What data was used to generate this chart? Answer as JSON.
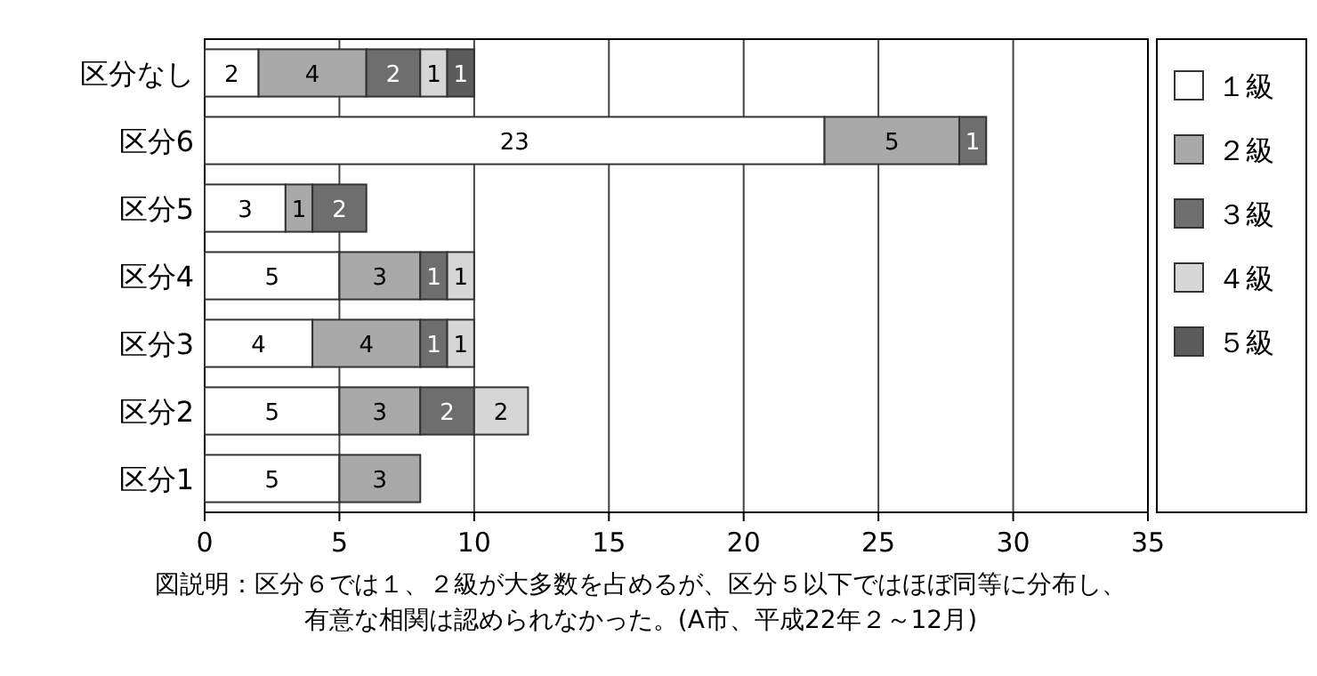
{
  "chart_data": {
    "type": "bar",
    "orientation": "horizontal",
    "stacked": true,
    "data_labels": true,
    "grid": "x",
    "legend": "right",
    "categories": [
      "区分なし",
      "区分6",
      "区分5",
      "区分4",
      "区分3",
      "区分2",
      "区分1"
    ],
    "series": [
      {
        "name": "１級",
        "color": "#ffffff",
        "values": [
          2,
          23,
          3,
          5,
          4,
          5,
          5
        ]
      },
      {
        "name": "２級",
        "color": "#a9a9a9",
        "values": [
          4,
          5,
          1,
          3,
          4,
          3,
          3
        ]
      },
      {
        "name": "３級",
        "color": "#6e6e6e",
        "values": [
          2,
          1,
          2,
          1,
          1,
          2,
          null
        ]
      },
      {
        "name": "４級",
        "color": "#d6d6d6",
        "values": [
          1,
          null,
          null,
          1,
          1,
          2,
          null
        ]
      },
      {
        "name": "５級",
        "color": "#5c5c5c",
        "values": [
          1,
          null,
          null,
          null,
          null,
          null,
          null
        ]
      }
    ],
    "xlim": [
      0,
      35
    ],
    "xticks": [
      0,
      5,
      10,
      15,
      20,
      25,
      30,
      35
    ],
    "annotations": [
      "図説明：区分６では１、２級が大多数を占めるが、区分５以下ではほぼ同等に分布し、",
      "有意な相関は認められなかった。(A市、平成22年２～12月)"
    ]
  }
}
